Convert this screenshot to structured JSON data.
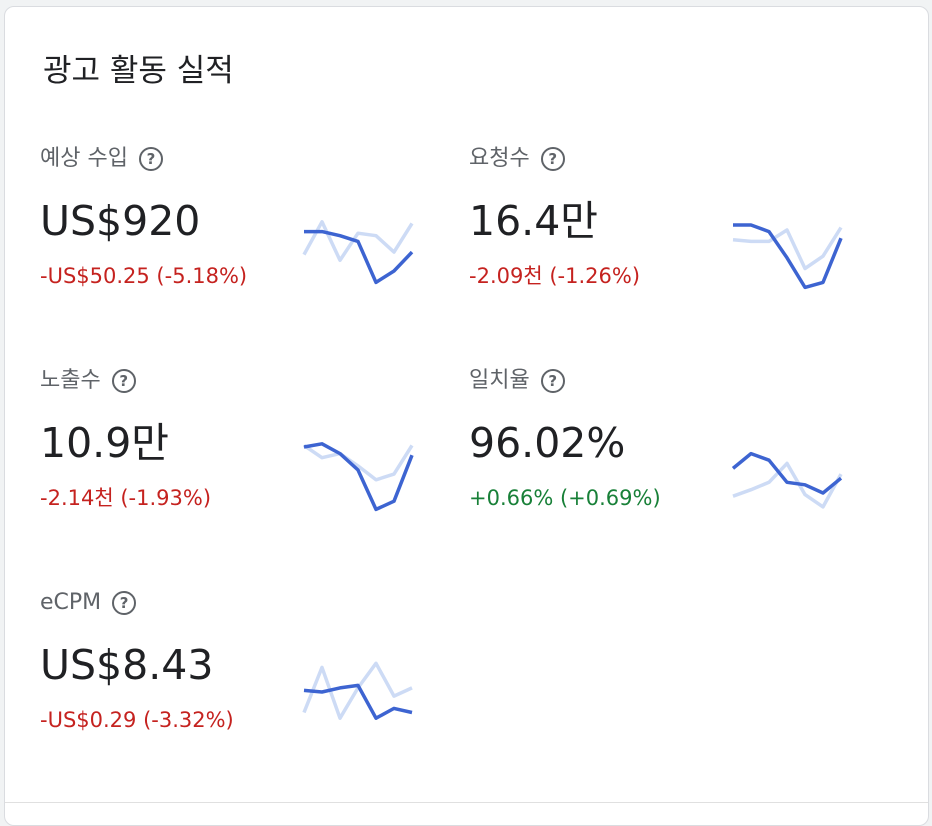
{
  "card": {
    "title": "광고 활동 실적"
  },
  "colors": {
    "current_line": "#3d64d1",
    "previous_line": "#cddbf5",
    "negative": "#c5221f",
    "positive": "#188038"
  },
  "metrics": [
    {
      "label": "예상 수입",
      "value": "US$920",
      "change": "-US$50.25 (-5.18%)",
      "trend": "negative",
      "current": [
        0.3,
        0.3,
        0.35,
        0.42,
        0.92,
        0.78,
        0.55
      ],
      "previous": [
        0.58,
        0.18,
        0.65,
        0.32,
        0.35,
        0.55,
        0.2
      ]
    },
    {
      "label": "요청수",
      "value": "16.4만",
      "change": "-2.09천 (-1.26%)",
      "trend": "negative",
      "current": [
        0.22,
        0.22,
        0.3,
        0.62,
        0.98,
        0.92,
        0.38
      ],
      "previous": [
        0.4,
        0.42,
        0.42,
        0.28,
        0.75,
        0.6,
        0.25
      ]
    },
    {
      "label": "노출수",
      "value": "10.9만",
      "change": "-2.14천 (-1.93%)",
      "trend": "negative",
      "current": [
        0.22,
        0.18,
        0.3,
        0.5,
        0.98,
        0.88,
        0.32
      ],
      "previous": [
        0.2,
        0.35,
        0.3,
        0.45,
        0.62,
        0.55,
        0.2
      ]
    },
    {
      "label": "일치율",
      "value": "96.02%",
      "change": "+0.66% (+0.69%)",
      "trend": "positive",
      "current": [
        0.48,
        0.3,
        0.38,
        0.65,
        0.68,
        0.78,
        0.6
      ],
      "previous": [
        0.82,
        0.74,
        0.65,
        0.42,
        0.8,
        0.95,
        0.55
      ]
    },
    {
      "label": "eCPM",
      "value": "US$8.43",
      "change": "-US$0.29 (-3.32%)",
      "trend": "negative",
      "current": [
        0.48,
        0.5,
        0.45,
        0.42,
        0.82,
        0.7,
        0.75
      ],
      "previous": [
        0.75,
        0.2,
        0.82,
        0.45,
        0.15,
        0.55,
        0.45
      ]
    }
  ]
}
